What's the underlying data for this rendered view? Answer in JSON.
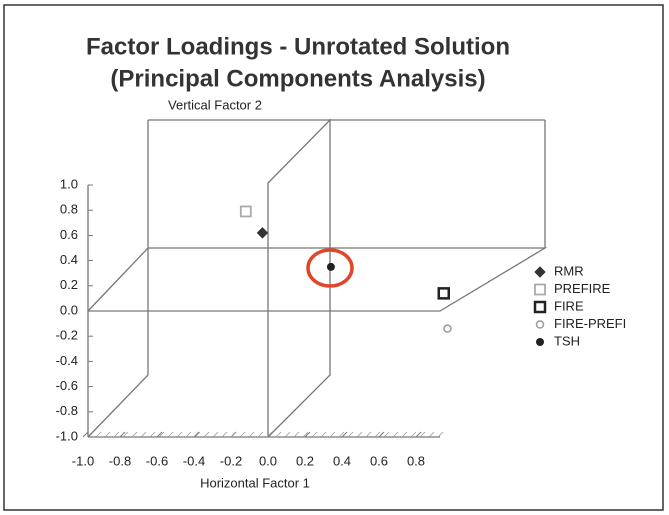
{
  "chart_data": {
    "type": "scatter",
    "title": "Factor Loadings - Unrotated Solution",
    "subtitle": "(Principal Components Analysis)",
    "y_label": "Vertical Factor 2",
    "x_label": "Horizontal Factor 1",
    "xlim": [
      -1.0,
      1.0
    ],
    "ylim": [
      -1.0,
      1.0
    ],
    "xticks": [
      {
        "value": -1.0,
        "label": "-1.0"
      },
      -0.8,
      -0.6,
      -0.4,
      -0.2,
      {
        "value": 0.0,
        "label": "0.0"
      },
      0.2,
      0.4,
      0.6,
      0.8
    ],
    "yticks": [
      {
        "value": 1.0,
        "label": "1.0"
      },
      0.8,
      0.6,
      0.4,
      0.2,
      {
        "value": 0.0,
        "label": "0.0"
      },
      -0.2,
      -0.4,
      -0.6,
      -0.8,
      {
        "value": -1.0,
        "label": "-1.0"
      }
    ],
    "legend": "right",
    "series": [
      {
        "name": "RMR",
        "color": "#333333",
        "marker": "diamond-filled",
        "x": [
          -0.03
        ],
        "y": [
          0.62
        ]
      },
      {
        "name": "PREFIRE",
        "color": "#aaaaaa",
        "marker": "square-open",
        "x": [
          -0.12
        ],
        "y": [
          0.79
        ]
      },
      {
        "name": "FIRE",
        "color": "#222222",
        "marker": "square-open-bold",
        "x": [
          0.95
        ],
        "y": [
          0.14
        ]
      },
      {
        "name": "FIRE-PREFI",
        "color": "#999999",
        "marker": "circle-open",
        "x": [
          0.97
        ],
        "y": [
          -0.14
        ]
      },
      {
        "name": "TSH",
        "color": "#222222",
        "marker": "circle-filled",
        "x": [
          0.34
        ],
        "y": [
          0.35
        ]
      }
    ]
  }
}
